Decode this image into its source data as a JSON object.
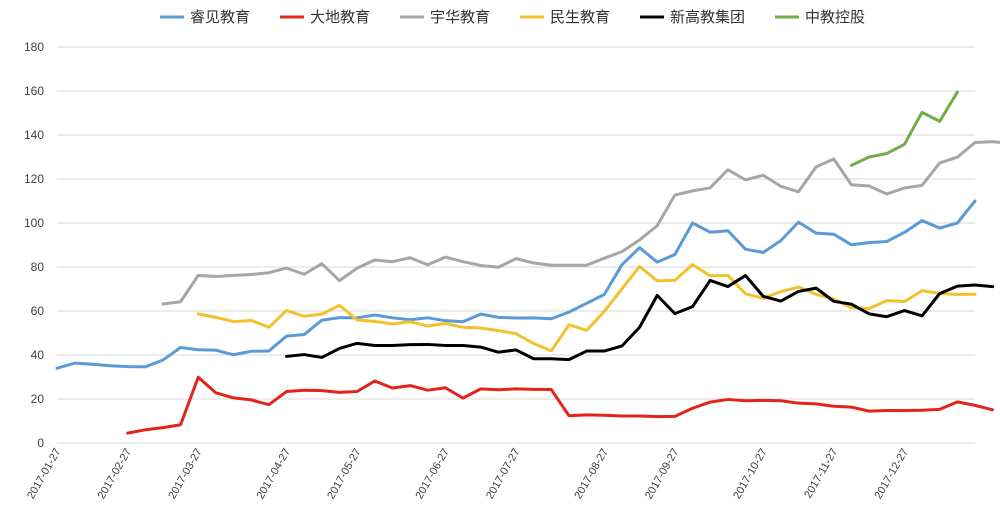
{
  "chart_data": {
    "type": "line",
    "title": "",
    "xlabel": "",
    "ylabel": "",
    "ylim": [
      0,
      180
    ],
    "yticks": [
      0,
      20,
      40,
      60,
      80,
      100,
      120,
      140,
      160,
      180
    ],
    "grid": "horizontal",
    "legend_position": "top",
    "x_tick_labels": [
      "2017-01-27",
      "2017-02-27",
      "2017-03-27",
      "2017-04-27",
      "2017-05-27",
      "2017-06-27",
      "2017-07-27",
      "2017-08-27",
      "2017-09-27",
      "2017-10-27",
      "2017-11-27",
      "2017-12-27"
    ],
    "x_tick_index": [
      0,
      4,
      8,
      13,
      17,
      22,
      26,
      31,
      35,
      40,
      44,
      48
    ],
    "n_points": 53,
    "series": [
      {
        "name": "睿见教育",
        "color": "#5B9BD5",
        "start": 0,
        "values": [
          34,
          36.3,
          35.8,
          35.1,
          34.7,
          34.6,
          37.7,
          43.4,
          42.4,
          42.2,
          40.1,
          41.7,
          41.8,
          48.6,
          49.3,
          55.8,
          57,
          56.9,
          58.2,
          56.9,
          56,
          56.9,
          55.6,
          55.1,
          58.6,
          57.1,
          56.8,
          56.9,
          56.5,
          59.5,
          63.5,
          67.5,
          81,
          88.8,
          82.2,
          85.7,
          100,
          95.8,
          96.5,
          88.1,
          86.6,
          92,
          100.4,
          95.4,
          94.9,
          90.1,
          91.1,
          91.6,
          95.7,
          101.1,
          97.7,
          100,
          110
        ]
      },
      {
        "name": "大地教育",
        "color": "#E3241B",
        "start": 4,
        "values": [
          4.5,
          6,
          7,
          8.3,
          29.9,
          22.8,
          20.5,
          19.6,
          17.4,
          23.4,
          24,
          23.8,
          23,
          23.4,
          28.2,
          25,
          26.1,
          24,
          25.1,
          20.4,
          24.6,
          24.2,
          24.6,
          24.4,
          24.3,
          12.4,
          12.8,
          12.6,
          12.3,
          12.3,
          12,
          12.1,
          15.8,
          18.6,
          19.8,
          19.2,
          19.4,
          19.2,
          18.1,
          17.8,
          16.7,
          16.3,
          14.5,
          14.8,
          14.8,
          14.9,
          15.3,
          18.7,
          17.1,
          15.1
        ]
      },
      {
        "name": "宇华教育",
        "color": "#A6A6A6",
        "start": 6,
        "values": [
          63.2,
          64.2,
          76.2,
          75.7,
          76.2,
          76.6,
          77.4,
          79.5,
          76.7,
          81.5,
          73.8,
          79.5,
          83.2,
          82.4,
          84.2,
          81,
          84.5,
          82.4,
          80.7,
          79.9,
          83.8,
          81.8,
          80.8,
          80.8,
          80.8,
          84,
          87,
          92.3,
          98.8,
          112.7,
          114.6,
          116,
          124.2,
          119.6,
          121.7,
          116.7,
          114.2,
          125.5,
          129.1,
          117.4,
          116.8,
          113.2,
          115.9,
          117.1,
          127.3,
          129.9,
          136.6,
          137,
          136.2
        ]
      },
      {
        "name": "民生教育",
        "color": "#F2C12E",
        "start": 8,
        "values": [
          58.7,
          57.1,
          55.2,
          55.7,
          52.6,
          60.2,
          57.6,
          58.6,
          62.6,
          55.9,
          55.3,
          54.1,
          55.1,
          53.2,
          54.3,
          52.6,
          52.3,
          51.1,
          49.7,
          45.2,
          41.9,
          53.7,
          51.2,
          59.8,
          70.1,
          80.2,
          73.7,
          73.9,
          81.1,
          76,
          76.2,
          67.8,
          65.8,
          68.8,
          70.9,
          67.6,
          65.4,
          61.5,
          61.1,
          64.7,
          64.3,
          69.2,
          68,
          67.5,
          67.6
        ]
      },
      {
        "name": "新高教集团",
        "color": "#000000",
        "start": 13,
        "values": [
          39.4,
          40.2,
          38.9,
          43,
          45.3,
          44.3,
          44.3,
          44.7,
          44.8,
          44.3,
          44.3,
          43.6,
          41.3,
          42.3,
          38.3,
          38.3,
          37.9,
          41.8,
          41.8,
          44.1,
          52.6,
          67.1,
          58.8,
          62,
          73.9,
          71.1,
          76.1,
          66.7,
          64.5,
          68.9,
          70.4,
          64.4,
          63.1,
          58.7,
          57.4,
          60.2,
          57.8,
          67.9,
          71.3,
          71.8,
          71.1
        ]
      },
      {
        "name": "中教控股",
        "color": "#70AD47",
        "start": 45,
        "values": [
          126.2,
          130,
          131.6,
          135.7,
          150.3,
          146.2,
          159.5
        ]
      }
    ]
  }
}
